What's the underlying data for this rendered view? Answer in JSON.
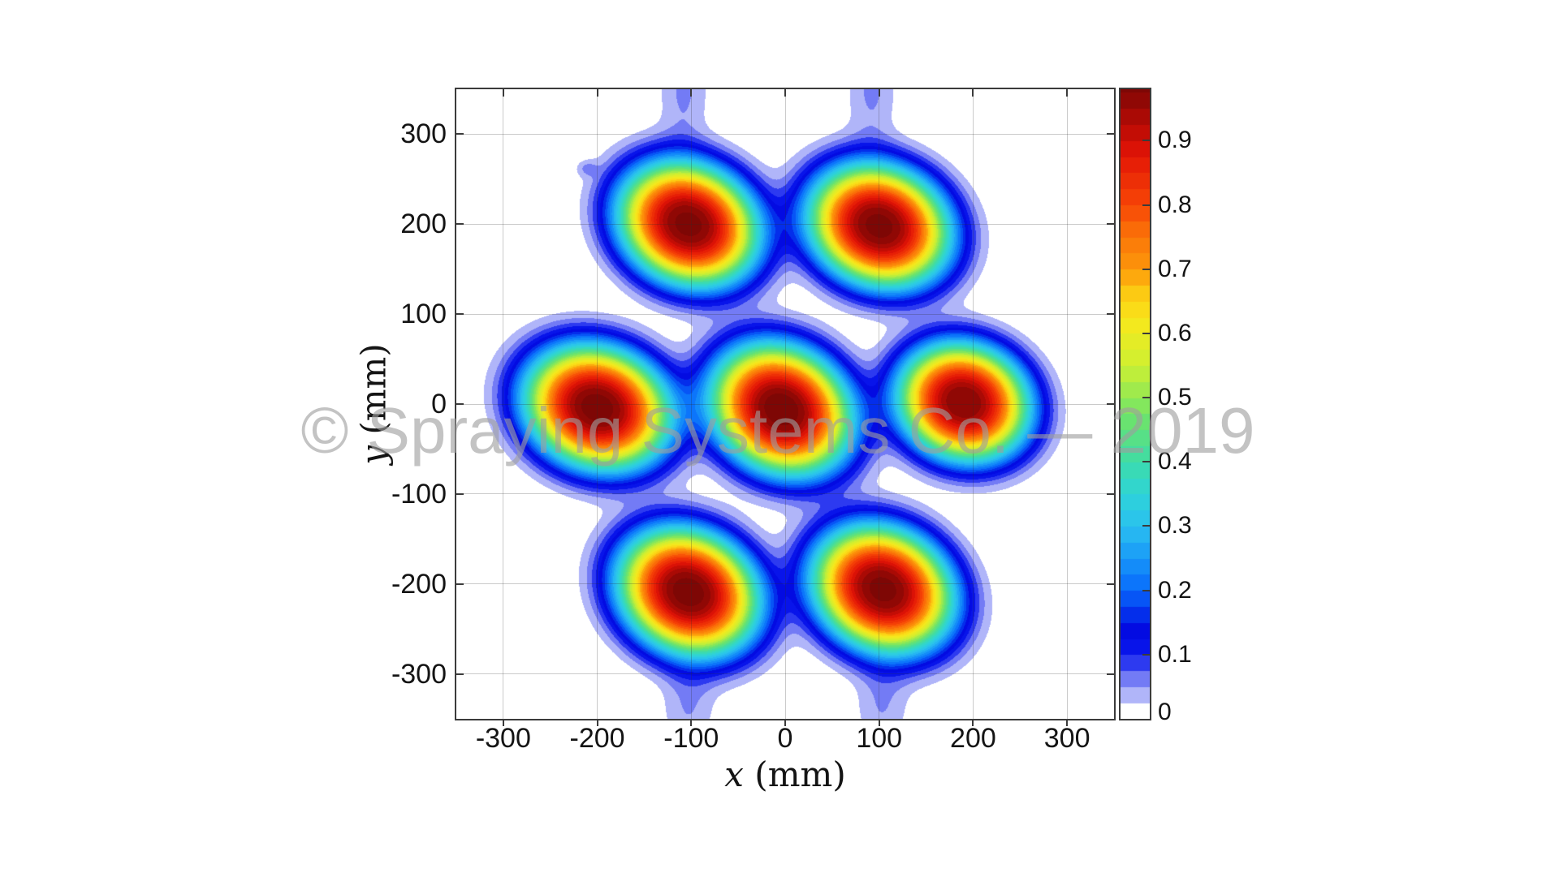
{
  "watermark": {
    "text": "© Spraying Systems Co. — 2019",
    "color_hex": "#9e9e9e"
  },
  "chart_data": {
    "type": "heatmap",
    "subtype": "filled_contour",
    "title": "",
    "xlabel": "x (mm)",
    "xlabel_var": "x",
    "xlabel_unit": " (mm)",
    "ylabel": "y (mm)",
    "ylabel_var": "y",
    "ylabel_unit": " (mm)",
    "xlim": [
      -350,
      350
    ],
    "ylim": [
      -350,
      350
    ],
    "x_ticks": [
      -300,
      -200,
      -100,
      0,
      100,
      200,
      300
    ],
    "x_tick_labels": [
      "-300",
      "-200",
      "-100",
      "0",
      "100",
      "200",
      "300"
    ],
    "y_ticks": [
      300,
      200,
      100,
      0,
      -100,
      -200,
      -300
    ],
    "y_tick_labels": [
      "300",
      "200",
      "100",
      "0",
      "-100",
      "-200",
      "-300"
    ],
    "grid": true,
    "legend_position": "colorbar-right",
    "level_step": 0.025,
    "vmax": 0.98,
    "colorbar": {
      "ticks": [
        0,
        0.1,
        0.2,
        0.3,
        0.4,
        0.5,
        0.6,
        0.7,
        0.8,
        0.9
      ],
      "tick_labels": [
        "0",
        "0.1",
        "0.2",
        "0.3",
        "0.4",
        "0.5",
        "0.6",
        "0.7",
        "0.8",
        "0.9"
      ]
    },
    "colormap_stops": [
      {
        "v": 0.0,
        "rgb": [
          255,
          255,
          255
        ]
      },
      {
        "v": 0.05,
        "rgb": [
          150,
          156,
          247
        ]
      },
      {
        "v": 0.1,
        "rgb": [
          10,
          25,
          238
        ]
      },
      {
        "v": 0.14,
        "rgb": [
          2,
          10,
          225
        ]
      },
      {
        "v": 0.2,
        "rgb": [
          8,
          105,
          252
        ]
      },
      {
        "v": 0.25,
        "rgb": [
          24,
          152,
          248
        ]
      },
      {
        "v": 0.3,
        "rgb": [
          42,
          192,
          240
        ]
      },
      {
        "v": 0.35,
        "rgb": [
          46,
          212,
          216
        ]
      },
      {
        "v": 0.4,
        "rgb": [
          60,
          220,
          170
        ]
      },
      {
        "v": 0.47,
        "rgb": [
          110,
          228,
          105
        ]
      },
      {
        "v": 0.55,
        "rgb": [
          205,
          240,
          50
        ]
      },
      {
        "v": 0.62,
        "rgb": [
          248,
          232,
          28
        ]
      },
      {
        "v": 0.66,
        "rgb": [
          252,
          205,
          20
        ]
      },
      {
        "v": 0.7,
        "rgb": [
          253,
          152,
          10
        ]
      },
      {
        "v": 0.76,
        "rgb": [
          250,
          110,
          8
        ]
      },
      {
        "v": 0.8,
        "rgb": [
          247,
          70,
          6
        ]
      },
      {
        "v": 0.88,
        "rgb": [
          226,
          20,
          6
        ]
      },
      {
        "v": 0.93,
        "rgb": [
          178,
          10,
          5
        ]
      },
      {
        "v": 0.98,
        "rgb": [
          126,
          7,
          5
        ]
      }
    ],
    "peaks": [
      {
        "x": -103,
        "y": 200,
        "amplitude": 0.985,
        "sigma_major_mm": 76,
        "sigma_minor_mm": 64,
        "rotation_deg": -32,
        "shape_exponent": 2.8
      },
      {
        "x": 100,
        "y": 198,
        "amplitude": 0.985,
        "sigma_major_mm": 76,
        "sigma_minor_mm": 64,
        "rotation_deg": -28,
        "shape_exponent": 2.8
      },
      {
        "x": -200,
        "y": -4,
        "amplitude": 0.99,
        "sigma_major_mm": 78,
        "sigma_minor_mm": 65,
        "rotation_deg": -25,
        "shape_exponent": 2.8
      },
      {
        "x": -4,
        "y": -6,
        "amplitude": 0.995,
        "sigma_major_mm": 78,
        "sigma_minor_mm": 66,
        "rotation_deg": -40,
        "shape_exponent": 2.8
      },
      {
        "x": 190,
        "y": 2,
        "amplitude": 0.975,
        "sigma_major_mm": 70,
        "sigma_minor_mm": 62,
        "rotation_deg": -28,
        "shape_exponent": 2.8
      },
      {
        "x": -103,
        "y": -209,
        "amplitude": 0.99,
        "sigma_major_mm": 77,
        "sigma_minor_mm": 65,
        "rotation_deg": -35,
        "shape_exponent": 2.8
      },
      {
        "x": 104,
        "y": -206,
        "amplitude": 0.985,
        "sigma_major_mm": 77,
        "sigma_minor_mm": 65,
        "rotation_deg": -35,
        "shape_exponent": 2.8
      }
    ],
    "secondary_features": [
      {
        "name": "top-edge-plume-left",
        "x": -108,
        "y": 348,
        "amplitude": 0.055,
        "sigma_major_mm": 26,
        "sigma_minor_mm": 58,
        "rotation_deg": 0,
        "shape_exponent": 2
      },
      {
        "name": "top-edge-plume-right",
        "x": 92,
        "y": 348,
        "amplitude": 0.055,
        "sigma_major_mm": 26,
        "sigma_minor_mm": 58,
        "rotation_deg": 0,
        "shape_exponent": 2
      },
      {
        "name": "bottom-edge-plume-left",
        "x": -103,
        "y": -338,
        "amplitude": 0.05,
        "sigma_major_mm": 28,
        "sigma_minor_mm": 48,
        "rotation_deg": 0,
        "shape_exponent": 2
      },
      {
        "name": "bottom-edge-plume-right",
        "x": 103,
        "y": -336,
        "amplitude": 0.05,
        "sigma_major_mm": 28,
        "sigma_minor_mm": 48,
        "rotation_deg": 0,
        "shape_exponent": 2
      },
      {
        "name": "isolated-droplet-spot",
        "x": -211,
        "y": 262,
        "amplitude": 0.045,
        "sigma_major_mm": 11,
        "sigma_minor_mm": 9,
        "rotation_deg": 0,
        "shape_exponent": 2
      }
    ]
  }
}
